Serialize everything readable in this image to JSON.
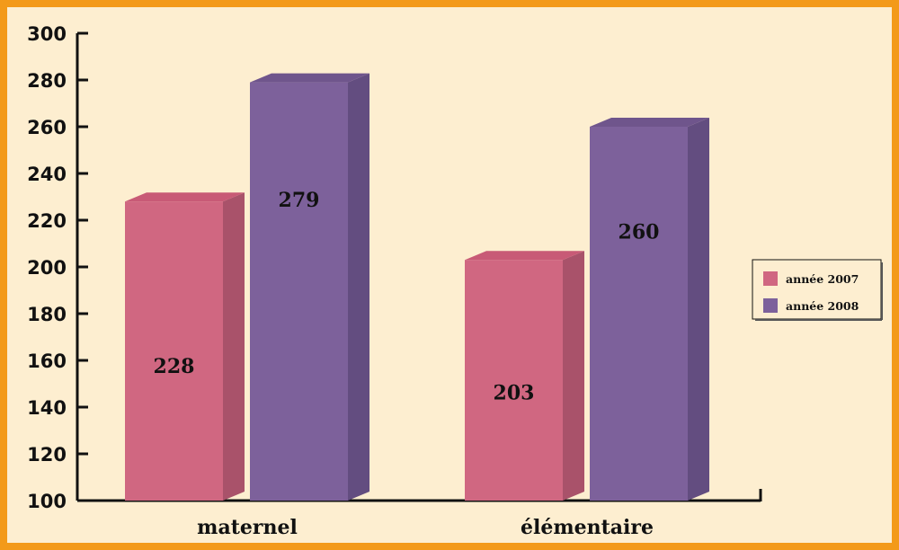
{
  "chart_data": {
    "type": "bar",
    "categories": [
      "maternel",
      "élémentaire"
    ],
    "series": [
      {
        "name": "année 2007",
        "values": [
          228,
          203
        ]
      },
      {
        "name": "année 2008",
        "values": [
          279,
          260
        ]
      }
    ],
    "ylim": [
      100,
      300
    ],
    "yticks": [
      "100",
      "120",
      "140",
      "160",
      "180",
      "200",
      "220",
      "240",
      "260",
      "280",
      "300"
    ],
    "legend_position": "right",
    "grid": false,
    "style": "3d"
  },
  "colors": {
    "background": "#fdeed0",
    "border": "#f39a1a",
    "series_2007": "#d06781",
    "series_2007_side": "#a9526a",
    "series_2007_top": "#c85a76",
    "series_2008": "#7d619b",
    "series_2008_side": "#634d80",
    "series_2008_top": "#6f558c"
  }
}
